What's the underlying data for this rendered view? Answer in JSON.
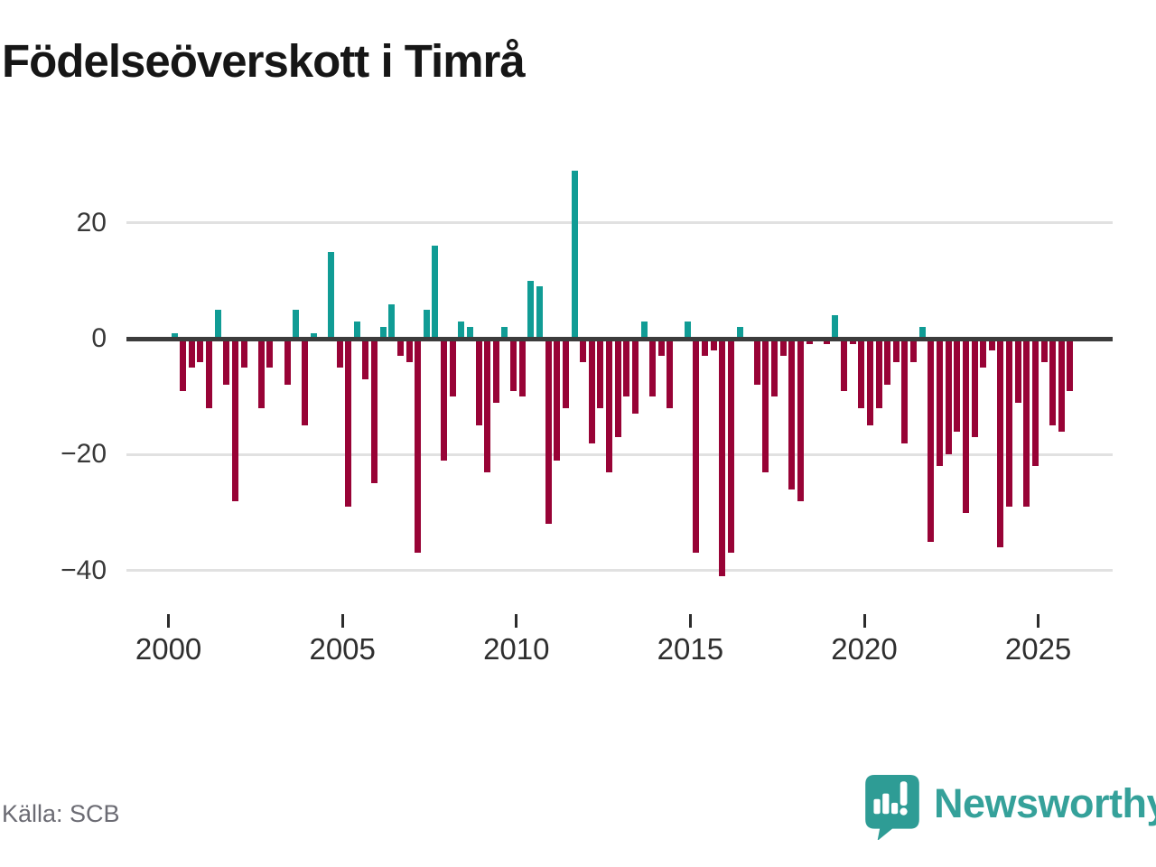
{
  "title": "Födelseöverskott i Timrå",
  "source": "Källa: SCB",
  "branding": {
    "logo_text": "Newsworthy"
  },
  "colors": {
    "positive_bar": "#109c95",
    "negative_bar": "#980336",
    "zero_line": "#3c3c3c",
    "gridline": "#e1e1e1",
    "axis_label": "#383838",
    "title_text": "#161616",
    "source_text": "#6b6b73",
    "brand_teal": "#35a19a"
  },
  "chart_data": {
    "type": "bar",
    "title": "Födelseöverskott i Timrå",
    "legend": "none",
    "grid": true,
    "x_axis": {
      "start_year": 2000,
      "frequency": "quarterly",
      "range": "2000 Q1 – 2025 Q4",
      "tick_labels": [
        "2000",
        "2005",
        "2010",
        "2015",
        "2020",
        "2025"
      ]
    },
    "y_axis": {
      "ticks": [
        20,
        0,
        -20,
        -40
      ],
      "tick_labels": [
        "20",
        "0",
        "−20",
        "−40"
      ],
      "ylim": [
        -44,
        33
      ]
    },
    "series": [
      {
        "name": "Födelseöverskott",
        "start": "2000 Q1",
        "values_per_year": 4,
        "values": [
          1,
          -9,
          -5,
          -4,
          -12,
          5,
          -8,
          -28,
          -5,
          0,
          -12,
          -5,
          0,
          -8,
          5,
          -15,
          1,
          0,
          15,
          -5,
          -29,
          3,
          -7,
          -25,
          2,
          6,
          -3,
          -4,
          -37,
          5,
          16,
          -21,
          -10,
          3,
          2,
          -15,
          -23,
          -11,
          2,
          -9,
          -10,
          10,
          9,
          -32,
          -21,
          -12,
          29,
          -4,
          -18,
          -12,
          -23,
          -17,
          -10,
          -13,
          3,
          -10,
          -3,
          -12,
          0,
          3,
          -37,
          -3,
          -2,
          -41,
          -37,
          2,
          0,
          -8,
          -23,
          -10,
          -3,
          -26,
          -28,
          -1,
          0,
          -1,
          4,
          -9,
          -1,
          -12,
          -15,
          -12,
          -8,
          -4,
          -18,
          -4,
          2,
          -35,
          -22,
          -20,
          -16,
          -30,
          -17,
          -5,
          -2,
          -36,
          -29,
          -11,
          -29,
          -22,
          -4,
          -15,
          -16,
          -9
        ]
      }
    ]
  }
}
